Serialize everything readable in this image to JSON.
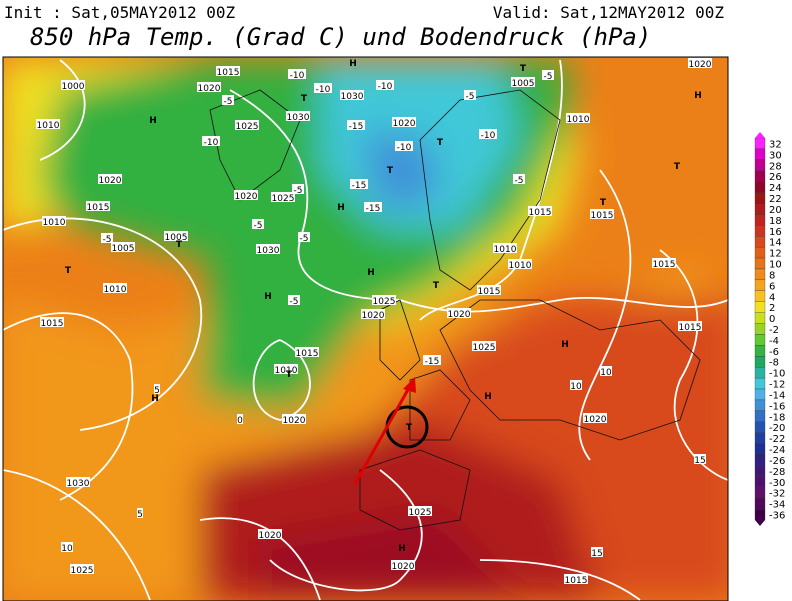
{
  "header": {
    "init": "Init : Sat,05MAY2012 00Z",
    "valid": "Valid: Sat,12MAY2012 00Z",
    "title": "850 hPa Temp. (Grad C) und Bodendruck (hPa)"
  },
  "map": {
    "labels": [
      "1015",
      "-10",
      "H",
      "T",
      "-5",
      "1020",
      "1000",
      "1020",
      "-5",
      "T",
      "-10",
      "1030",
      "-10",
      "-5",
      "1005",
      "H",
      "1010",
      "H",
      "1025",
      "1030",
      "-15",
      "1020",
      "-10",
      "1010",
      "-10",
      "-10",
      "T",
      "T",
      "1020",
      "-15",
      "T",
      "-5",
      "1015",
      "1020",
      "1025",
      "-5",
      "H",
      "-15",
      "1015",
      "1015",
      "T",
      "1010",
      "-5",
      "1005",
      "1005",
      "T",
      "-5",
      "1030",
      "-5",
      "1010",
      "1010",
      "1015",
      "T",
      "1010",
      "H",
      "-5",
      "H",
      "1025",
      "T",
      "1015",
      "1015",
      "1020",
      "1020",
      "1025",
      "1015",
      "H",
      "1015",
      "1010",
      "T",
      "-15",
      "H",
      "H",
      "1020",
      "T",
      "1020",
      "1030",
      "1025",
      "1020",
      "H",
      "1020",
      "1025",
      "15",
      "1015",
      "15",
      "10",
      "10",
      "10",
      "0",
      "5",
      "5"
    ]
  },
  "colorbar": {
    "labels": [
      32,
      30,
      28,
      26,
      24,
      22,
      20,
      18,
      16,
      14,
      12,
      10,
      8,
      6,
      4,
      2,
      0,
      -2,
      -4,
      -6,
      -8,
      -10,
      -12,
      -14,
      -16,
      -18,
      -20,
      -22,
      -24,
      -26,
      -28,
      -30,
      -32,
      -34,
      -36
    ],
    "colors": [
      "#ff20ff",
      "#e000c8",
      "#c00090",
      "#a00050",
      "#8c0828",
      "#9c1414",
      "#ac1c1c",
      "#c02420",
      "#cc3420",
      "#d84a1c",
      "#e0601a",
      "#e87418",
      "#f08a18",
      "#f4a420",
      "#f8c020",
      "#f0e020",
      "#c8e020",
      "#98d424",
      "#60c830",
      "#34b440",
      "#20a860",
      "#28b4a0",
      "#40c8d8",
      "#50b0e8",
      "#4090d8",
      "#3070c8",
      "#2454b0",
      "#2040a0",
      "#203090",
      "#302080",
      "#401878",
      "#501070",
      "#601068",
      "#500858",
      "#400048"
    ]
  }
}
